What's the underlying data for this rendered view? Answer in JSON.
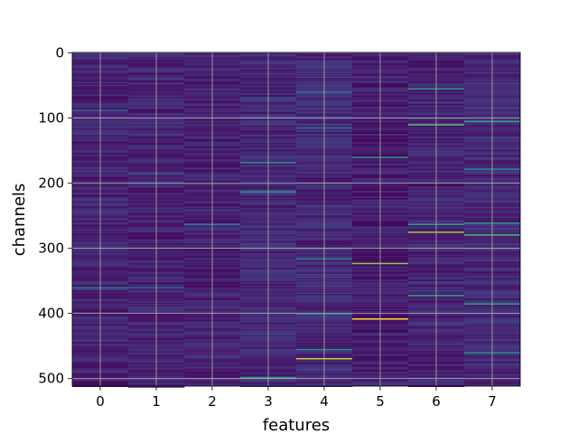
{
  "chart_data": {
    "type": "heatmap",
    "title": "",
    "xlabel": "features",
    "ylabel": "channels",
    "x_ticks": [
      "0",
      "1",
      "2",
      "3",
      "4",
      "5",
      "6",
      "7"
    ],
    "y_ticks": [
      "0",
      "100",
      "200",
      "300",
      "400",
      "500"
    ],
    "y_tick_values": [
      0,
      100,
      200,
      300,
      400,
      500
    ],
    "n_columns": 8,
    "n_rows": 512,
    "xlim": [
      -0.5,
      7.5
    ],
    "ylim": [
      511.5,
      -0.5
    ],
    "colormap": "viridis",
    "grid": true,
    "column_base_level": [
      0.1,
      0.1,
      0.1,
      0.12,
      0.12,
      0.08,
      0.1,
      0.12
    ],
    "highlighted_cells": [
      {
        "x": 0,
        "y": 88,
        "value": 0.35
      },
      {
        "x": 0,
        "y": 360,
        "value": 0.45
      },
      {
        "x": 1,
        "y": 185,
        "value": 0.35
      },
      {
        "x": 1,
        "y": 360,
        "value": 0.35
      },
      {
        "x": 2,
        "y": 263,
        "value": 0.4
      },
      {
        "x": 3,
        "y": 168,
        "value": 0.5
      },
      {
        "x": 3,
        "y": 213,
        "value": 0.55
      },
      {
        "x": 3,
        "y": 498,
        "value": 0.55
      },
      {
        "x": 4,
        "y": 60,
        "value": 0.4
      },
      {
        "x": 4,
        "y": 115,
        "value": 0.45
      },
      {
        "x": 4,
        "y": 316,
        "value": 0.45
      },
      {
        "x": 4,
        "y": 400,
        "value": 0.5
      },
      {
        "x": 4,
        "y": 455,
        "value": 0.5
      },
      {
        "x": 4,
        "y": 469,
        "value": 0.9
      },
      {
        "x": 5,
        "y": 160,
        "value": 0.55
      },
      {
        "x": 5,
        "y": 323,
        "value": 0.8
      },
      {
        "x": 5,
        "y": 408,
        "value": 1.0
      },
      {
        "x": 6,
        "y": 55,
        "value": 0.6
      },
      {
        "x": 6,
        "y": 110,
        "value": 0.75
      },
      {
        "x": 6,
        "y": 263,
        "value": 0.6
      },
      {
        "x": 6,
        "y": 275,
        "value": 0.85
      },
      {
        "x": 6,
        "y": 372,
        "value": 0.6
      },
      {
        "x": 7,
        "y": 105,
        "value": 0.6
      },
      {
        "x": 7,
        "y": 178,
        "value": 0.5
      },
      {
        "x": 7,
        "y": 261,
        "value": 0.55
      },
      {
        "x": 7,
        "y": 279,
        "value": 0.7
      },
      {
        "x": 7,
        "y": 385,
        "value": 0.6
      },
      {
        "x": 7,
        "y": 460,
        "value": 0.5
      }
    ]
  }
}
